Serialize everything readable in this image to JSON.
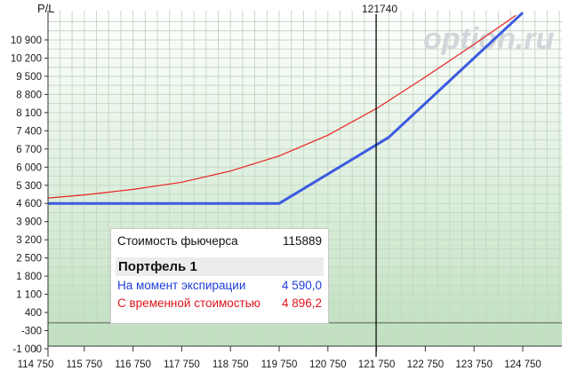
{
  "chart_data": {
    "type": "line",
    "ylabel": "P/L",
    "xlabel": "",
    "watermark": "option.ru",
    "xlim": [
      114750,
      125500
    ],
    "ylim": [
      -1000,
      11600
    ],
    "x_ticks": [
      114750,
      115750,
      116750,
      117750,
      118750,
      119750,
      120750,
      121750,
      122750,
      123750,
      124750
    ],
    "x_tick_labels": [
      "114 750",
      "115 750",
      "116 750",
      "117 750",
      "118 750",
      "119 750",
      "120 750",
      "121 750",
      "122 750",
      "123 750",
      "124 750"
    ],
    "y_ticks": [
      -1000,
      -300,
      400,
      1100,
      1800,
      2500,
      3200,
      3900,
      4600,
      5300,
      6000,
      6700,
      7400,
      8100,
      8800,
      9500,
      10200,
      10900
    ],
    "y_tick_labels": [
      "-1 000",
      "-300",
      "400",
      "1 100",
      "1 800",
      "2 500",
      "3 200",
      "3 900",
      "4 600",
      "5 300",
      "6 000",
      "6 700",
      "7 400",
      "8 100",
      "8 800",
      "9 500",
      "10 200",
      "10 900"
    ],
    "vertical_line": {
      "x": 121740,
      "label": "121740"
    },
    "zero_line": 0,
    "series": [
      {
        "name": "На момент экспирации",
        "color": "#3b5be0",
        "x": [
          114750,
          119750,
          122000,
          124750
        ],
        "y": [
          4600,
          4600,
          7150,
          11950
        ]
      },
      {
        "name": "С временной стоимостью",
        "color": "#e8231f",
        "x": [
          114750,
          115750,
          116750,
          117750,
          118750,
          119750,
          120750,
          121750,
          122750,
          123750,
          124610
        ],
        "y": [
          4770,
          4930,
          5140,
          5420,
          5850,
          6430,
          7230,
          8260,
          9470,
          10730,
          11850
        ]
      }
    ],
    "grid": true
  },
  "legend": {
    "futures_label": "Стоимость фьючерса",
    "futures_value": "115889",
    "portfolio_title": "Портфель 1",
    "expiry_label": "На момент экспирации",
    "expiry_value": "4 590,0",
    "time_label": "С временной стоимостью",
    "time_value": "4 896,2"
  }
}
